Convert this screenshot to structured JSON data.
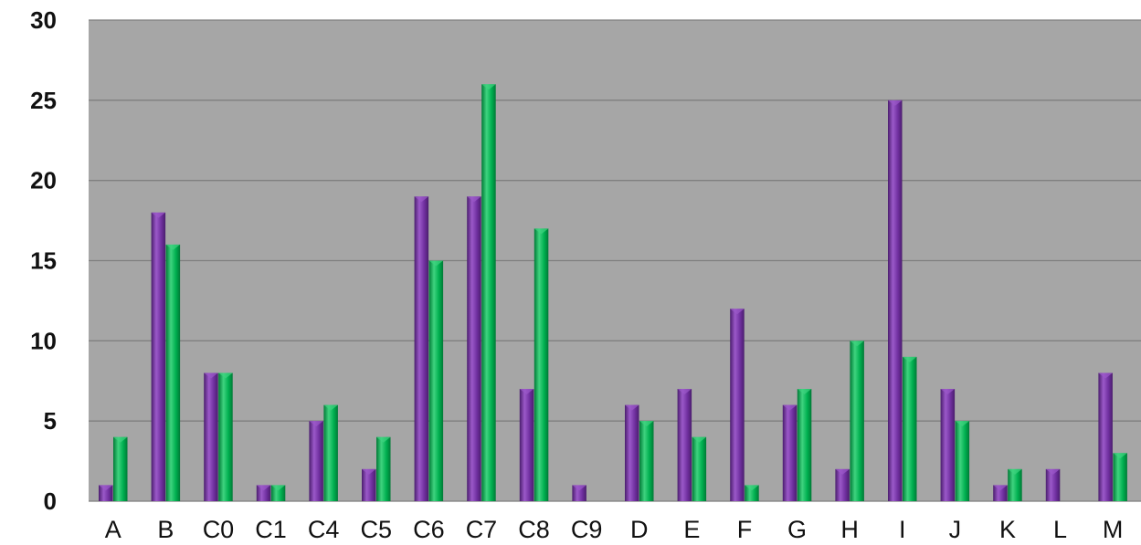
{
  "chart_data": {
    "type": "bar",
    "categories": [
      "A",
      "B",
      "C0",
      "C1",
      "C4",
      "C5",
      "C6",
      "C7",
      "C8",
      "C9",
      "D",
      "E",
      "F",
      "G",
      "H",
      "I",
      "J",
      "K",
      "L",
      "M"
    ],
    "series": [
      {
        "values": [
          1,
          18,
          8,
          1,
          5,
          2,
          19,
          19,
          7,
          1,
          6,
          7,
          12,
          6,
          2,
          25,
          7,
          1,
          2,
          8
        ]
      },
      {
        "values": [
          4,
          16,
          8,
          1,
          6,
          4,
          15,
          26,
          17,
          0,
          5,
          4,
          1,
          7,
          10,
          9,
          5,
          2,
          0,
          3
        ]
      }
    ],
    "ylim": [
      0,
      30
    ],
    "yticks": [
      0,
      5,
      10,
      15,
      20,
      25,
      30
    ],
    "grid": true,
    "title": "",
    "xlabel": "",
    "ylabel": ""
  },
  "colors": {
    "plot_background": "#a6a6a6",
    "gridline": "#7f7f7f",
    "series_1": "#7030a0",
    "series_1_dark": "#4b1d6e",
    "series_1_light": "#9b59c9",
    "series_2": "#00b050",
    "series_2_dark": "#007a36",
    "series_2_light": "#3fd37f"
  }
}
